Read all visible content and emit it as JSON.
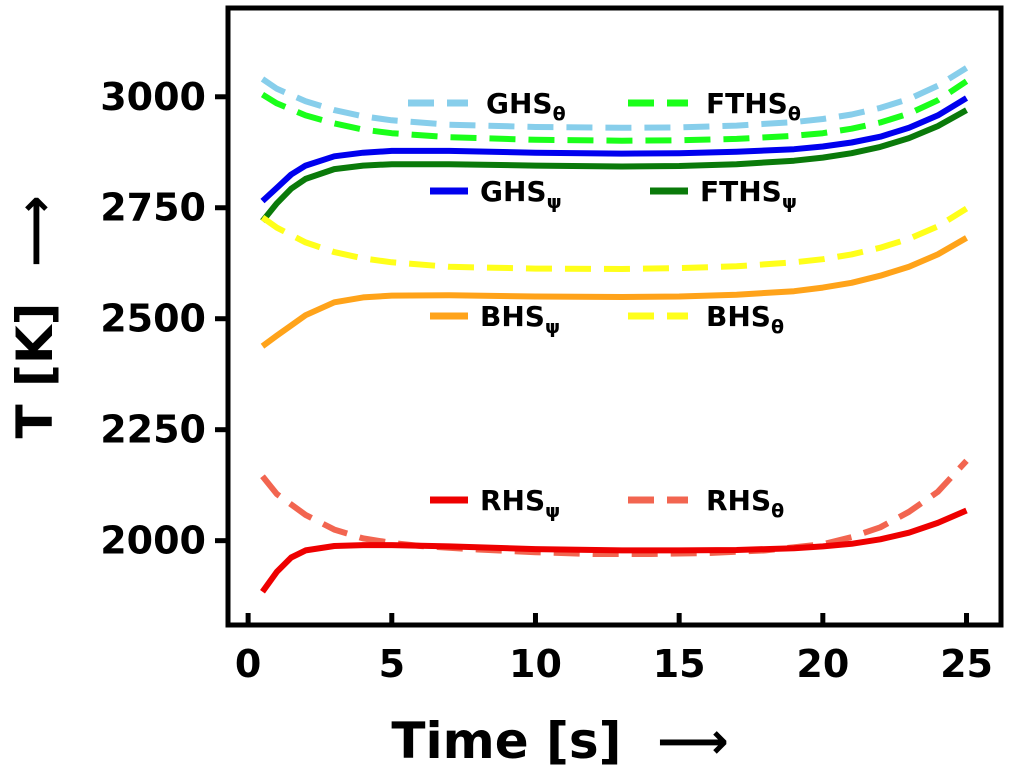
{
  "chart_data": {
    "type": "line",
    "xlabel": "Time [s]",
    "ylabel": "T [K]",
    "xlabel_arrow": "⟶",
    "ylabel_arrow": "⟶",
    "xlim": [
      -0.7,
      26.2
    ],
    "ylim": [
      1810,
      3200
    ],
    "xticks": [
      0,
      5,
      10,
      15,
      20,
      25
    ],
    "yticks": [
      2000,
      2250,
      2500,
      2750,
      3000
    ],
    "grid": false,
    "legend_placement": "inside, multiple rows",
    "series": [
      {
        "name": "GHS",
        "sub": "θ",
        "color": "#87ceeb",
        "dash": true,
        "x": [
          0.5,
          1,
          2,
          3,
          4,
          5,
          7,
          10,
          13,
          15,
          17,
          19,
          20,
          21,
          22,
          23,
          24,
          25
        ],
        "y": [
          3040,
          3018,
          2990,
          2970,
          2956,
          2947,
          2937,
          2932,
          2930,
          2931,
          2935,
          2943,
          2950,
          2960,
          2975,
          2995,
          3025,
          3065
        ]
      },
      {
        "name": "FTHS",
        "sub": "θ",
        "color": "#1aff1a",
        "dash": true,
        "x": [
          0.5,
          1,
          2,
          3,
          4,
          5,
          7,
          10,
          13,
          15,
          17,
          19,
          20,
          21,
          22,
          23,
          24,
          25
        ],
        "y": [
          3005,
          2985,
          2958,
          2940,
          2926,
          2918,
          2909,
          2903,
          2901,
          2902,
          2905,
          2912,
          2918,
          2928,
          2942,
          2962,
          2992,
          3035
        ]
      },
      {
        "name": "GHS",
        "sub": "ψ",
        "color": "#0000ee",
        "dash": false,
        "x": [
          0.5,
          1,
          1.5,
          2,
          3,
          4,
          5,
          7,
          10,
          13,
          15,
          17,
          19,
          20,
          21,
          22,
          23,
          24,
          25
        ],
        "y": [
          2765,
          2795,
          2825,
          2845,
          2866,
          2874,
          2878,
          2878,
          2874,
          2872,
          2873,
          2876,
          2882,
          2888,
          2897,
          2910,
          2930,
          2958,
          2997
        ]
      },
      {
        "name": "FTHS",
        "sub": "ψ",
        "color": "#0a7a0a",
        "dash": false,
        "x": [
          0.5,
          1,
          1.5,
          2,
          3,
          4,
          5,
          7,
          10,
          13,
          15,
          17,
          19,
          20,
          21,
          22,
          23,
          24,
          25
        ],
        "y": [
          2720,
          2760,
          2793,
          2815,
          2837,
          2845,
          2848,
          2848,
          2845,
          2843,
          2844,
          2848,
          2856,
          2863,
          2873,
          2887,
          2907,
          2934,
          2970
        ]
      },
      {
        "name": "BHS",
        "sub": "θ",
        "color": "#ffff1a",
        "dash": true,
        "x": [
          0.5,
          1,
          2,
          3,
          4,
          5,
          7,
          10,
          13,
          15,
          17,
          19,
          20,
          21,
          22,
          23,
          24,
          25
        ],
        "y": [
          2728,
          2705,
          2672,
          2650,
          2636,
          2627,
          2617,
          2613,
          2612,
          2614,
          2618,
          2627,
          2634,
          2645,
          2660,
          2680,
          2708,
          2748
        ]
      },
      {
        "name": "BHS",
        "sub": "ψ",
        "color": "#ffa31a",
        "dash": false,
        "x": [
          0.5,
          1,
          1.5,
          2,
          3,
          4,
          5,
          7,
          10,
          13,
          15,
          17,
          19,
          20,
          21,
          22,
          23,
          24,
          25
        ],
        "y": [
          2438,
          2462,
          2485,
          2508,
          2537,
          2548,
          2552,
          2553,
          2550,
          2549,
          2550,
          2554,
          2562,
          2570,
          2581,
          2597,
          2617,
          2645,
          2682
        ]
      },
      {
        "name": "RHS",
        "sub": "θ",
        "color": "#f26550",
        "dash": true,
        "x": [
          0.5,
          1,
          2,
          3,
          4,
          5,
          6,
          8,
          10,
          12,
          14,
          16,
          18,
          20,
          21,
          22,
          23,
          24,
          25
        ],
        "y": [
          2145,
          2105,
          2058,
          2025,
          2005,
          1995,
          1988,
          1980,
          1974,
          1970,
          1970,
          1972,
          1978,
          1992,
          2008,
          2030,
          2065,
          2110,
          2180
        ]
      },
      {
        "name": "RHS",
        "sub": "ψ",
        "color": "#ee0000",
        "dash": false,
        "x": [
          0.5,
          1,
          1.5,
          2,
          3,
          4,
          5,
          7,
          10,
          13,
          15,
          17,
          19,
          20,
          21,
          22,
          23,
          24,
          25
        ],
        "y": [
          1885,
          1930,
          1962,
          1978,
          1988,
          1990,
          1990,
          1987,
          1981,
          1978,
          1978,
          1979,
          1983,
          1987,
          1993,
          2003,
          2018,
          2040,
          2068
        ]
      }
    ],
    "legend": [
      {
        "name": "GHS",
        "sub": "θ",
        "series": 0,
        "col": 0,
        "row": 0
      },
      {
        "name": "FTHS",
        "sub": "θ",
        "series": 1,
        "col": 1,
        "row": 0
      },
      {
        "name": "GHS",
        "sub": "ψ",
        "series": 2,
        "col": 0,
        "row": 1
      },
      {
        "name": "FTHS",
        "sub": "ψ",
        "series": 3,
        "col": 1,
        "row": 1
      },
      {
        "name": "BHS",
        "sub": "ψ",
        "series": 5,
        "col": 0,
        "row": 2
      },
      {
        "name": "BHS",
        "sub": "θ",
        "series": 4,
        "col": 1,
        "row": 2
      },
      {
        "name": "RHS",
        "sub": "ψ",
        "series": 7,
        "col": 0,
        "row": 3
      },
      {
        "name": "RHS",
        "sub": "θ",
        "series": 6,
        "col": 1,
        "row": 3
      }
    ]
  }
}
